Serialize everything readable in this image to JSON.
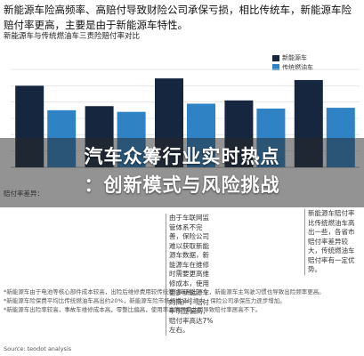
{
  "article": {
    "intro": "新能源车险高频率、高赔付导致财险公司承保亏损，相比传统车，新能源车险赔付率更高，主要是由于新能源车特性。",
    "chart_caption": "新能源车与传统燃油车三责险赔付率对比"
  },
  "overlay": {
    "headline_line1": "汽车众筹行业实时热点",
    "headline_line2": "：创新模式与风险挑战"
  },
  "chart_data": {
    "type": "bar",
    "categories": [
      "",
      "",
      "",
      "",
      ""
    ],
    "series": [
      {
        "name": "新能源车",
        "color": "#16263f",
        "values": [
          100,
          75,
          109,
          82,
          107
        ]
      },
      {
        "name": "传统燃油车",
        "color": "#2f83c4",
        "values": [
          70,
          68,
          78,
          72,
          73
        ]
      }
    ],
    "ylim": [
      0,
      120
    ],
    "grid": true,
    "legend": "top-right",
    "row_label": "赔付率差异：",
    "row_values": [
      "",
      "",
      "",
      "",
      ""
    ]
  },
  "notes": {
    "note1": "由于车联网监管体系不完善，保险公司难以获取新能源车数据，新能源车在维修时需要更高维修成本，使用更多新能源车的商户，赔付率明显偏高，赔付率高达7%左右。",
    "note2": "新能源车赔付率比传统燃油车高出一些，各省市赔付率差异较大，传统燃油车赔付率有一定优势。"
  },
  "footnote": {
    "line1": "*新能源车由于电池等核心部件成本较高，出险后维修费用较传统燃油车高出不少，新能源车主驾驶习惯也导致出险频率更高。",
    "line2": "*新能源车险保费平均比传统燃油车高出约20%，新能源车险市场规模持续扩大，保险公司承保压力逐步增加。",
    "line3": "*新能源车出险率较高，事故车维修成本高，零整比偏高，使用率高等因素共同导致赔付率居高不下。"
  },
  "source": "Source: teodot analysis"
}
